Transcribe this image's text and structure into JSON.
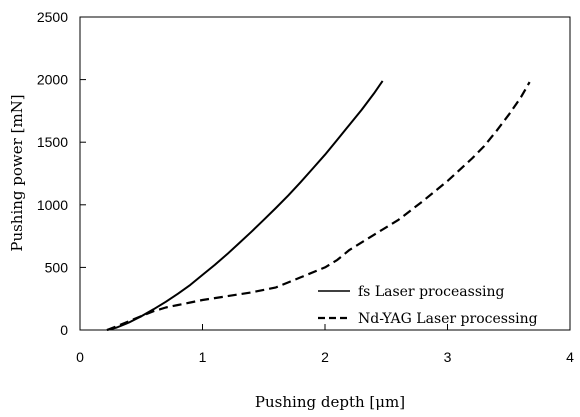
{
  "chart_data": {
    "type": "line",
    "xlabel": "Pushing depth [μm]",
    "ylabel": "Pushing power [mN]",
    "xlim": [
      0,
      4
    ],
    "ylim": [
      0,
      2500
    ],
    "x_ticks": [
      "0",
      "1",
      "2",
      "3",
      "4"
    ],
    "y_ticks": [
      "0",
      "500",
      "1000",
      "1500",
      "2000",
      "2500"
    ],
    "grid": false,
    "legend_position": "bottom-right",
    "series": [
      {
        "name": "fs Laser proceassing",
        "style": "solid",
        "color": "#000000",
        "points": [
          [
            0.22,
            0
          ],
          [
            0.3,
            20
          ],
          [
            0.4,
            60
          ],
          [
            0.5,
            110
          ],
          [
            0.6,
            165
          ],
          [
            0.7,
            225
          ],
          [
            0.8,
            290
          ],
          [
            0.9,
            360
          ],
          [
            1.0,
            440
          ],
          [
            1.1,
            520
          ],
          [
            1.2,
            605
          ],
          [
            1.3,
            695
          ],
          [
            1.4,
            785
          ],
          [
            1.5,
            880
          ],
          [
            1.6,
            975
          ],
          [
            1.7,
            1075
          ],
          [
            1.8,
            1180
          ],
          [
            1.9,
            1290
          ],
          [
            2.0,
            1400
          ],
          [
            2.1,
            1520
          ],
          [
            2.2,
            1640
          ],
          [
            2.3,
            1760
          ],
          [
            2.4,
            1890
          ],
          [
            2.47,
            1990
          ]
        ]
      },
      {
        "name": "Nd-YAG Laser processing",
        "style": "dashed",
        "color": "#000000",
        "points": [
          [
            0.22,
            0
          ],
          [
            0.3,
            30
          ],
          [
            0.4,
            70
          ],
          [
            0.5,
            110
          ],
          [
            0.6,
            150
          ],
          [
            0.7,
            180
          ],
          [
            0.8,
            200
          ],
          [
            0.9,
            220
          ],
          [
            1.0,
            240
          ],
          [
            1.2,
            270
          ],
          [
            1.4,
            300
          ],
          [
            1.6,
            340
          ],
          [
            1.8,
            420
          ],
          [
            2.0,
            500
          ],
          [
            2.1,
            560
          ],
          [
            2.2,
            640
          ],
          [
            2.4,
            760
          ],
          [
            2.6,
            880
          ],
          [
            2.8,
            1030
          ],
          [
            3.0,
            1190
          ],
          [
            3.2,
            1370
          ],
          [
            3.3,
            1470
          ],
          [
            3.4,
            1590
          ],
          [
            3.5,
            1720
          ],
          [
            3.6,
            1860
          ],
          [
            3.67,
            1980
          ]
        ]
      }
    ]
  }
}
